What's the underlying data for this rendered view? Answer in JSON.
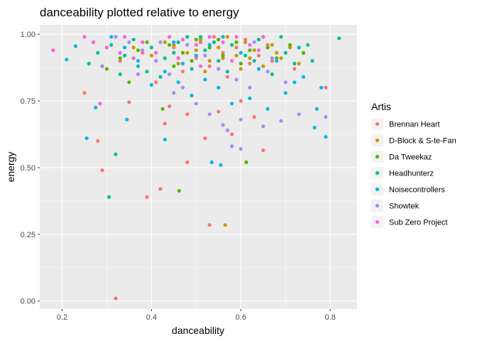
{
  "chart_data": {
    "type": "scatter",
    "title": "danceability plotted relative to energy",
    "xlabel": "danceability",
    "ylabel": "energy",
    "xlim": [
      0.15,
      0.86
    ],
    "ylim": [
      -0.03,
      1.035
    ],
    "x_ticks": [
      "0.2",
      "0.4",
      "0.6",
      "0.8"
    ],
    "x_tick_values": [
      0.2,
      0.4,
      0.6,
      0.8
    ],
    "y_ticks": [
      "0.00",
      "0.25",
      "0.50",
      "0.75",
      "1.00"
    ],
    "y_tick_values": [
      0.0,
      0.25,
      0.5,
      0.75,
      1.0
    ],
    "grid": true,
    "legend_title": "Artis",
    "legend_position": "right",
    "series": [
      {
        "name": "Brennan Heart",
        "color": "#F8766D",
        "points": [
          [
            0.32,
            0.01
          ],
          [
            0.53,
            0.285
          ],
          [
            0.39,
            0.39
          ],
          [
            0.42,
            0.42
          ],
          [
            0.29,
            0.49
          ],
          [
            0.48,
            0.52
          ],
          [
            0.65,
            0.565
          ],
          [
            0.28,
            0.6
          ],
          [
            0.52,
            0.61
          ],
          [
            0.58,
            0.625
          ],
          [
            0.43,
            0.665
          ],
          [
            0.79,
            0.8
          ],
          [
            0.25,
            0.78
          ],
          [
            0.35,
            0.745
          ],
          [
            0.44,
            0.73
          ],
          [
            0.48,
            0.7
          ],
          [
            0.55,
            0.71
          ],
          [
            0.6,
            0.75
          ],
          [
            0.63,
            0.69
          ],
          [
            0.41,
            0.82
          ],
          [
            0.47,
            0.86
          ],
          [
            0.53,
            0.88
          ],
          [
            0.57,
            0.84
          ],
          [
            0.62,
            0.89
          ],
          [
            0.67,
            0.9
          ],
          [
            0.72,
            0.87
          ],
          [
            0.45,
            0.95
          ],
          [
            0.51,
            0.97
          ],
          [
            0.56,
            0.93
          ],
          [
            0.61,
            0.98
          ],
          [
            0.66,
            0.96
          ],
          [
            0.38,
            0.93
          ],
          [
            0.33,
            0.9
          ],
          [
            0.29,
            0.88
          ],
          [
            0.5,
            0.91
          ],
          [
            0.54,
            0.99
          ],
          [
            0.59,
            0.95
          ],
          [
            0.64,
            0.92
          ]
        ]
      },
      {
        "name": "D-Block & S-te-Fan",
        "color": "#C49A00",
        "points": [
          [
            0.565,
            0.285
          ],
          [
            0.45,
            0.96
          ],
          [
            0.48,
            0.93
          ],
          [
            0.51,
            0.98
          ],
          [
            0.53,
            0.9
          ],
          [
            0.55,
            0.95
          ],
          [
            0.57,
            0.99
          ],
          [
            0.59,
            0.92
          ],
          [
            0.61,
            0.97
          ],
          [
            0.63,
            0.94
          ],
          [
            0.65,
            0.88
          ],
          [
            0.67,
            0.96
          ],
          [
            0.69,
            0.91
          ],
          [
            0.71,
            0.95
          ],
          [
            0.73,
            0.89
          ],
          [
            0.36,
            0.95
          ],
          [
            0.4,
            0.92
          ],
          [
            0.43,
            0.97
          ],
          [
            0.46,
            0.89
          ],
          [
            0.5,
            0.94
          ],
          [
            0.52,
            0.86
          ],
          [
            0.56,
            0.91
          ],
          [
            0.6,
            0.87
          ],
          [
            0.64,
            0.98
          ],
          [
            0.68,
            0.93
          ],
          [
            0.54,
            0.97
          ],
          [
            0.58,
            0.96
          ],
          [
            0.62,
            0.91
          ]
        ]
      },
      {
        "name": "Da Tweekaz",
        "color": "#53B400",
        "points": [
          [
            0.462,
            0.413
          ],
          [
            0.612,
            0.52
          ],
          [
            0.425,
            0.72
          ],
          [
            0.3,
            0.87
          ],
          [
            0.33,
            0.91
          ],
          [
            0.37,
            0.94
          ],
          [
            0.41,
            0.9
          ],
          [
            0.44,
            0.96
          ],
          [
            0.47,
            0.93
          ],
          [
            0.5,
            0.98
          ],
          [
            0.53,
            0.95
          ],
          [
            0.56,
            0.92
          ],
          [
            0.59,
            0.97
          ],
          [
            0.62,
            0.94
          ],
          [
            0.65,
            0.99
          ],
          [
            0.68,
            0.91
          ],
          [
            0.71,
            0.96
          ],
          [
            0.74,
            0.93
          ],
          [
            0.35,
            0.82
          ],
          [
            0.39,
            0.97
          ],
          [
            0.45,
            0.88
          ],
          [
            0.49,
            0.9
          ],
          [
            0.55,
            0.98
          ],
          [
            0.6,
            0.89
          ],
          [
            0.66,
            0.95
          ]
        ]
      },
      {
        "name": "Headhunterz",
        "color": "#00C094",
        "points": [
          [
            0.305,
            0.39
          ],
          [
            0.32,
            0.55
          ],
          [
            0.82,
            0.985
          ],
          [
            0.26,
            0.89
          ],
          [
            0.28,
            0.93
          ],
          [
            0.31,
            0.96
          ],
          [
            0.34,
            0.92
          ],
          [
            0.37,
            0.88
          ],
          [
            0.4,
            0.95
          ],
          [
            0.43,
            0.91
          ],
          [
            0.46,
            0.97
          ],
          [
            0.49,
            0.87
          ],
          [
            0.52,
            0.94
          ],
          [
            0.55,
            0.9
          ],
          [
            0.58,
            0.96
          ],
          [
            0.61,
            0.92
          ],
          [
            0.64,
            0.98
          ],
          [
            0.67,
            0.85
          ],
          [
            0.7,
            0.93
          ],
          [
            0.73,
            0.95
          ],
          [
            0.76,
            0.9
          ],
          [
            0.75,
            0.96
          ],
          [
            0.39,
            0.86
          ],
          [
            0.42,
            0.84
          ],
          [
            0.51,
            0.99
          ],
          [
            0.57,
            0.86
          ],
          [
            0.63,
            0.9
          ],
          [
            0.69,
            0.99
          ],
          [
            0.72,
            0.89
          ],
          [
            0.36,
            0.98
          ],
          [
            0.33,
            0.85
          ],
          [
            0.45,
            0.93
          ],
          [
            0.48,
            0.99
          ],
          [
            0.54,
            0.97
          ]
        ]
      },
      {
        "name": "Noisecontrollers",
        "color": "#00B6EB",
        "points": [
          [
            0.21,
            0.905
          ],
          [
            0.23,
            0.955
          ],
          [
            0.255,
            0.61
          ],
          [
            0.275,
            0.725
          ],
          [
            0.345,
            0.68
          ],
          [
            0.43,
            0.605
          ],
          [
            0.535,
            0.52
          ],
          [
            0.555,
            0.51
          ],
          [
            0.79,
            0.615
          ],
          [
            0.765,
            0.65
          ],
          [
            0.77,
            0.72
          ],
          [
            0.78,
            0.8
          ],
          [
            0.74,
            0.84
          ],
          [
            0.7,
            0.78
          ],
          [
            0.66,
            0.72
          ],
          [
            0.62,
            0.76
          ],
          [
            0.58,
            0.74
          ],
          [
            0.55,
            0.8
          ],
          [
            0.52,
            0.83
          ],
          [
            0.49,
            0.77
          ],
          [
            0.46,
            0.82
          ],
          [
            0.43,
            0.86
          ],
          [
            0.4,
            0.81
          ],
          [
            0.37,
            0.9
          ],
          [
            0.34,
            0.95
          ],
          [
            0.31,
            0.99
          ],
          [
            0.45,
            0.97
          ],
          [
            0.5,
            0.92
          ],
          [
            0.56,
            0.99
          ],
          [
            0.6,
            0.93
          ],
          [
            0.64,
            0.87
          ],
          [
            0.68,
            0.9
          ],
          [
            0.72,
            0.82
          ],
          [
            0.47,
            0.89
          ],
          [
            0.53,
            0.96
          ]
        ]
      },
      {
        "name": "Showtek",
        "color": "#A58AFF",
        "points": [
          [
            0.79,
            0.69
          ],
          [
            0.73,
            0.7
          ],
          [
            0.69,
            0.675
          ],
          [
            0.65,
            0.655
          ],
          [
            0.6,
            0.68
          ],
          [
            0.57,
            0.64
          ],
          [
            0.58,
            0.58
          ],
          [
            0.6,
            0.57
          ],
          [
            0.56,
            0.66
          ],
          [
            0.53,
            0.7
          ],
          [
            0.5,
            0.74
          ],
          [
            0.47,
            0.8
          ],
          [
            0.44,
            0.85
          ],
          [
            0.41,
            0.9
          ],
          [
            0.38,
            0.94
          ],
          [
            0.35,
            0.97
          ],
          [
            0.32,
            0.99
          ],
          [
            0.29,
            0.88
          ],
          [
            0.55,
            0.87
          ],
          [
            0.59,
            0.83
          ],
          [
            0.62,
            0.8
          ],
          [
            0.66,
            0.86
          ],
          [
            0.7,
            0.82
          ],
          [
            0.48,
            0.96
          ],
          [
            0.52,
            0.92
          ],
          [
            0.45,
            0.78
          ],
          [
            0.63,
            0.97
          ],
          [
            0.67,
            0.91
          ],
          [
            0.42,
            0.97
          ],
          [
            0.37,
            0.85
          ]
        ]
      },
      {
        "name": "Sub Zero Project",
        "color": "#FB61D7",
        "points": [
          [
            0.18,
            0.94
          ],
          [
            0.25,
            0.99
          ],
          [
            0.285,
            0.74
          ],
          [
            0.27,
            0.97
          ],
          [
            0.3,
            0.95
          ],
          [
            0.34,
            0.99
          ],
          [
            0.38,
            0.97
          ],
          [
            0.41,
            0.93
          ],
          [
            0.44,
            0.99
          ],
          [
            0.47,
            0.98
          ],
          [
            0.5,
            0.96
          ],
          [
            0.53,
            0.99
          ],
          [
            0.56,
            0.97
          ],
          [
            0.59,
            0.99
          ],
          [
            0.62,
            0.96
          ],
          [
            0.65,
            0.99
          ],
          [
            0.33,
            0.93
          ],
          [
            0.36,
            0.91
          ],
          [
            0.46,
            0.91
          ],
          [
            0.51,
            0.88
          ],
          [
            0.58,
            0.9
          ],
          [
            0.64,
            0.94
          ]
        ]
      }
    ]
  }
}
